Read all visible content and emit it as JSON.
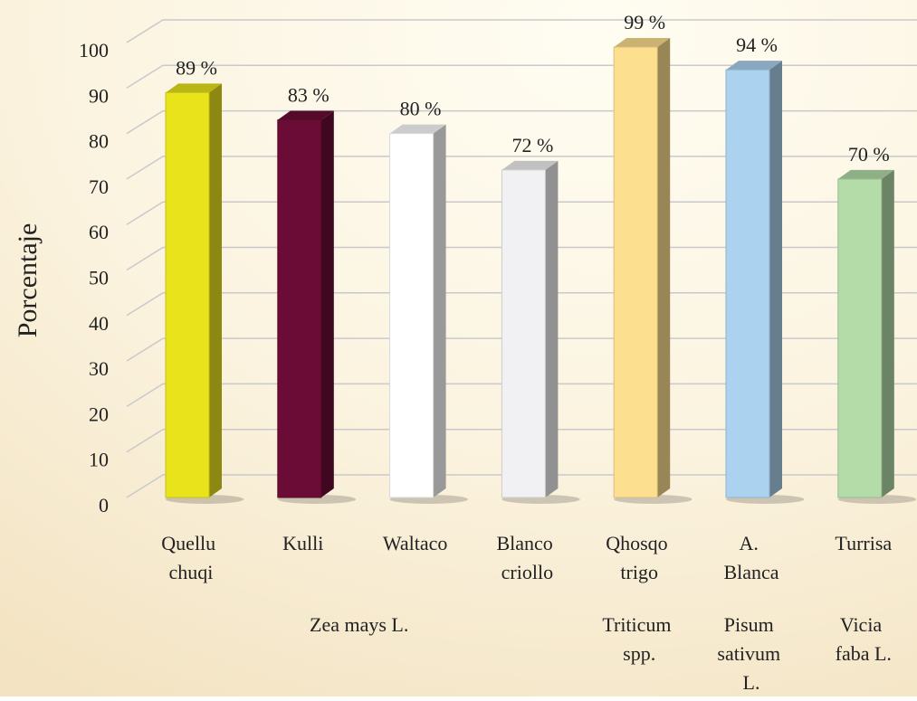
{
  "chart_data": {
    "type": "bar3d",
    "y_label": "Porcentaje",
    "categories": [
      "Quellu chuqi",
      "Kulli",
      "Waltaco",
      "Blanco criollo",
      "Qhosqo trigo",
      "A. Blanca",
      "Turrisa"
    ],
    "values": [
      89,
      83,
      80,
      72,
      99,
      94,
      70
    ],
    "value_labels": [
      "89 %",
      "83 %",
      "80 %",
      "72 %",
      "99 %",
      "94 %",
      "70 %"
    ],
    "colors": [
      "#e9e31c",
      "#6a0c35",
      "#ffffff",
      "#f1f1f3",
      "#fde08f",
      "#abd2ef",
      "#b3dca8"
    ],
    "group_labels": [
      "Zea mays L.",
      "Triticum spp.",
      "Pisum sativum L.",
      "Vicia faba L."
    ],
    "ylim": [
      0,
      100
    ],
    "yticks": [
      0,
      10,
      20,
      30,
      40,
      50,
      60,
      70,
      80,
      90,
      100
    ],
    "grid": true
  }
}
